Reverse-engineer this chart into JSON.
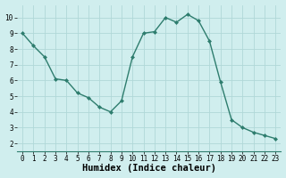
{
  "x": [
    0,
    1,
    2,
    3,
    4,
    5,
    6,
    7,
    8,
    9,
    10,
    11,
    12,
    13,
    14,
    15,
    16,
    17,
    18,
    19,
    20,
    21,
    22,
    23
  ],
  "y": [
    9.0,
    8.2,
    7.5,
    6.1,
    6.0,
    5.2,
    4.9,
    4.3,
    4.0,
    4.7,
    7.5,
    9.0,
    9.1,
    10.0,
    9.7,
    10.2,
    9.8,
    8.5,
    5.9,
    3.5,
    3.0,
    2.7,
    2.5,
    2.3
  ],
  "line_color": "#2e7d6e",
  "marker": "D",
  "marker_size": 2,
  "linewidth": 1.0,
  "bg_color": "#d0eeee",
  "grid_color": "#b0d8d8",
  "xlabel": "Humidex (Indice chaleur)",
  "ylim": [
    1.5,
    10.8
  ],
  "xlim": [
    -0.5,
    23.5
  ],
  "yticks": [
    2,
    3,
    4,
    5,
    6,
    7,
    8,
    9,
    10
  ],
  "xticks": [
    0,
    1,
    2,
    3,
    4,
    5,
    6,
    7,
    8,
    9,
    10,
    11,
    12,
    13,
    14,
    15,
    16,
    17,
    18,
    19,
    20,
    21,
    22,
    23
  ],
  "tick_fontsize": 5.5,
  "xlabel_fontsize": 7.5,
  "ylabel_fontsize": 7
}
